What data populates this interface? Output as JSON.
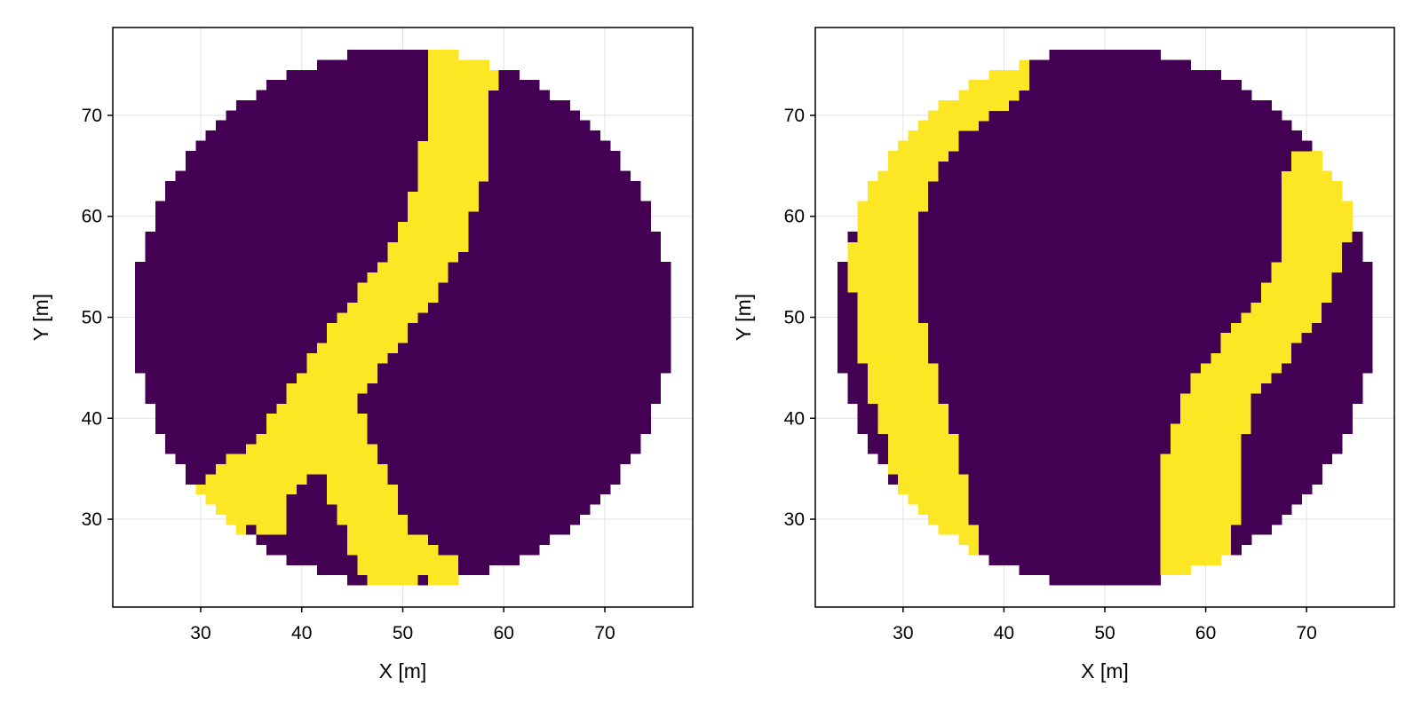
{
  "chart_data": [
    {
      "type": "heatmap",
      "xlabel": "X [m]",
      "ylabel": "Y [m]",
      "xlim": [
        21.3,
        78.7
      ],
      "ylim": [
        21.3,
        78.7
      ],
      "xticks": [
        30,
        40,
        50,
        60,
        70
      ],
      "yticks": [
        30,
        40,
        50,
        60,
        70
      ],
      "cell_size": 1,
      "grid": true,
      "colors": {
        "background": "#440154",
        "channel": "#fde725"
      },
      "domain": {
        "shape": "circle",
        "center": [
          50,
          50
        ],
        "radius": 26
      },
      "channels": [
        {
          "points": [
            [
              56,
              75
            ],
            [
              55,
              65
            ],
            [
              53,
              58
            ],
            [
              50,
              53
            ],
            [
              46,
              48
            ],
            [
              42,
              42
            ],
            [
              38,
              36
            ],
            [
              33,
              32
            ]
          ],
          "width": 3.2
        },
        {
          "points": [
            [
              42,
              42
            ],
            [
              45,
              35
            ],
            [
              47,
              30
            ],
            [
              49,
              25
            ]
          ],
          "width": 3.0
        },
        {
          "points": [
            [
              47,
              30
            ],
            [
              51,
              27
            ],
            [
              54,
              25
            ]
          ],
          "width": 1.6
        },
        {
          "points": [
            [
              42,
              42
            ],
            [
              38,
              36
            ],
            [
              37,
              30
            ]
          ],
          "width": 1.6
        }
      ]
    },
    {
      "type": "heatmap",
      "xlabel": "X [m]",
      "ylabel": "Y [m]",
      "xlim": [
        21.3,
        78.7
      ],
      "ylim": [
        21.3,
        78.7
      ],
      "xticks": [
        30,
        40,
        50,
        60,
        70
      ],
      "yticks": [
        30,
        40,
        50,
        60,
        70
      ],
      "cell_size": 1,
      "grid": true,
      "colors": {
        "background": "#440154",
        "channel": "#fde725"
      },
      "domain": {
        "shape": "circle",
        "center": [
          50,
          50
        ],
        "radius": 26
      },
      "channels": [
        {
          "points": [
            [
              39,
              74
            ],
            [
              33,
              70
            ],
            [
              29,
              63
            ],
            [
              28,
              55
            ],
            [
              29,
              47
            ],
            [
              31,
              40
            ],
            [
              33,
              33
            ],
            [
              34,
              28
            ]
          ],
          "width": 3.3
        },
        {
          "points": [
            [
              71,
              64
            ],
            [
              71,
              58
            ],
            [
              69,
              52
            ],
            [
              65,
              47
            ],
            [
              61,
              42
            ],
            [
              59,
              36
            ],
            [
              59,
              29
            ],
            [
              59,
              24
            ]
          ],
          "width": 3.0
        },
        {
          "points": [
            [
              65,
              47
            ],
            [
              63,
              38
            ],
            [
              63,
              30
            ]
          ],
          "width": 0.9
        }
      ]
    }
  ]
}
